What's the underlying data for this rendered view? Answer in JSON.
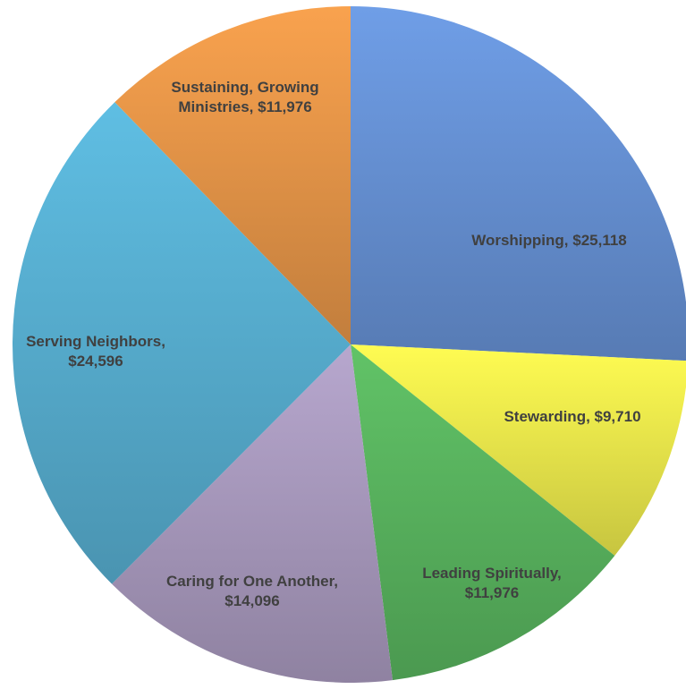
{
  "chart_data": {
    "type": "pie",
    "title": "",
    "slices": [
      {
        "name": "Worshipping",
        "value": 25118,
        "color": "#6a96dc",
        "label_lines": [
          "Worshipping, $25,118"
        ]
      },
      {
        "name": "Stewarding",
        "value": 9710,
        "color": "#f3f04e",
        "label_lines": [
          "Stewarding, $9,710"
        ]
      },
      {
        "name": "Leading Spiritually",
        "value": 11976,
        "color": "#5cba62",
        "label_lines": [
          "Leading Spiritually,",
          "$11,976"
        ]
      },
      {
        "name": "Caring for One Another",
        "value": 14096,
        "color": "#ae9fc4",
        "label_lines": [
          "Caring for One Another,",
          "$14,096"
        ]
      },
      {
        "name": "Serving Neighbors",
        "value": 24596,
        "color": "#5ab5d8",
        "label_lines": [
          "Serving Neighbors,",
          "$24,596"
        ]
      },
      {
        "name": "Sustaining, Growing Ministries",
        "value": 11976,
        "color": "#ed9a4a",
        "label_lines": [
          "Sustaining, Growing",
          "Ministries, $11,976"
        ]
      }
    ],
    "start_angle_deg": 0,
    "direction": "clockwise",
    "legend": "none",
    "data_labels": "inside"
  }
}
